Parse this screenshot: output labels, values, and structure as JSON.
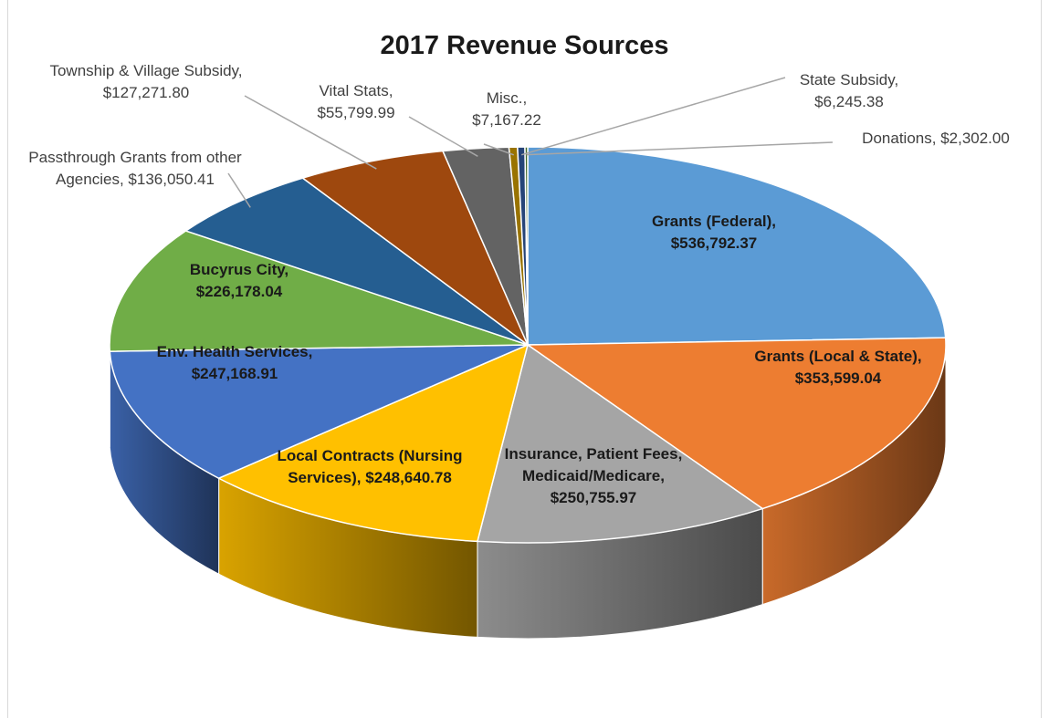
{
  "chart_data": {
    "type": "pie3d",
    "title": "2017 Revenue Sources",
    "categories": [
      "Grants (Federal),",
      "Grants (Local & State),",
      "Insurance, Patient Fees, Medicaid/Medicare,",
      "Local Contracts (Nursing Services),",
      "Env. Health Services,",
      "Bucyrus City,",
      "Passthrough Grants from other Agencies,",
      "Township & Village Subsidy,",
      "Vital Stats,",
      "Misc.,",
      "State Subsidy,",
      "Donations,"
    ],
    "values": [
      536792.37,
      353599.04,
      250755.97,
      248640.78,
      247168.91,
      226178.04,
      136050.41,
      127271.8,
      55799.99,
      7167.22,
      6245.38,
      2302.0
    ],
    "value_labels": [
      "$536,792.37",
      "$353,599.04",
      "$250,755.97",
      "$248,640.78",
      "$247,168.91",
      "$226,178.04",
      "$136,050.41",
      "$127,271.80",
      "$55,799.99",
      "$7,167.22",
      "$6,245.38",
      "$2,302.00"
    ],
    "colors": [
      "#5b9bd5",
      "#ed7d31",
      "#a5a5a5",
      "#ffc000",
      "#4472c4",
      "#70ad47",
      "#255e91",
      "#9e480e",
      "#636363",
      "#997300",
      "#264478",
      "#43682b"
    ]
  }
}
